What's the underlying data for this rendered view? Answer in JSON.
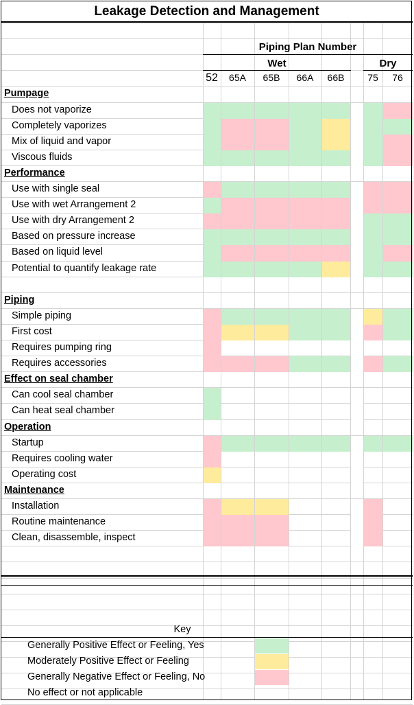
{
  "title": "Leakage Detection and Management",
  "header": {
    "group": "Piping Plan Number",
    "wet": "Wet",
    "dry": "Dry",
    "columns": [
      "52",
      "65A",
      "65B",
      "66A",
      "66B",
      "75",
      "76"
    ]
  },
  "colors": {
    "positive": "#c6efce",
    "moderate": "#ffeb9c",
    "negative": "#ffc7ce",
    "none": "#ffffff"
  },
  "sections": [
    {
      "name": "Pumpage",
      "rows": [
        {
          "label": "Does not vaporize",
          "ratings": [
            "G",
            "G",
            "G",
            "G",
            "G",
            "G",
            "R"
          ]
        },
        {
          "label": "Completely vaporizes",
          "ratings": [
            "G",
            "R",
            "R",
            "G",
            "Y",
            "G",
            "G"
          ]
        },
        {
          "label": "Mix of liquid and vapor",
          "ratings": [
            "G",
            "R",
            "R",
            "G",
            "Y",
            "G",
            "R"
          ]
        },
        {
          "label": "Viscous fluids",
          "ratings": [
            "G",
            "G",
            "G",
            "G",
            "G",
            "G",
            "R"
          ]
        }
      ]
    },
    {
      "name": "Performance",
      "rows": [
        {
          "label": "Use with single seal",
          "ratings": [
            "R",
            "G",
            "G",
            "G",
            "G",
            "R",
            "R"
          ]
        },
        {
          "label": "Use with wet Arrangement 2",
          "ratings": [
            "G",
            "R",
            "R",
            "R",
            "R",
            "R",
            "R"
          ]
        },
        {
          "label": "Use with dry Arrangement 2",
          "ratings": [
            "R",
            "R",
            "R",
            "R",
            "R",
            "G",
            "G"
          ]
        },
        {
          "label": "Based on pressure increase",
          "ratings": [
            "G",
            "G",
            "G",
            "G",
            "G",
            "G",
            "G"
          ]
        },
        {
          "label": "Based on liquid level",
          "ratings": [
            "G",
            "R",
            "R",
            "R",
            "R",
            "G",
            "R"
          ]
        },
        {
          "label": "Potential to quantify leakage rate",
          "ratings": [
            "G",
            "G",
            "G",
            "G",
            "Y",
            "G",
            "G"
          ]
        }
      ]
    },
    {
      "name": "Piping",
      "rows": [
        {
          "label": "Simple piping",
          "ratings": [
            "R",
            "G",
            "G",
            "G",
            "G",
            "Y",
            "G"
          ]
        },
        {
          "label": "First cost",
          "ratings": [
            "R",
            "Y",
            "Y",
            "G",
            "G",
            "R",
            "G"
          ]
        },
        {
          "label": "Requires pumping ring",
          "ratings": [
            "R",
            "N",
            "N",
            "N",
            "N",
            "N",
            "N"
          ]
        },
        {
          "label": "Requires accessories",
          "ratings": [
            "R",
            "R",
            "R",
            "G",
            "G",
            "R",
            "G"
          ]
        }
      ]
    },
    {
      "name": "Effect on seal chamber",
      "rows": [
        {
          "label": "Can cool seal chamber",
          "ratings": [
            "G",
            "N",
            "N",
            "N",
            "N",
            "N",
            "N"
          ]
        },
        {
          "label": "Can heat seal chamber",
          "ratings": [
            "G",
            "N",
            "N",
            "N",
            "N",
            "N",
            "N"
          ]
        }
      ]
    },
    {
      "name": "Operation",
      "rows": [
        {
          "label": "Startup",
          "ratings": [
            "R",
            "G",
            "G",
            "G",
            "G",
            "G",
            "G"
          ]
        },
        {
          "label": "Requires cooling water",
          "ratings": [
            "R",
            "N",
            "N",
            "N",
            "N",
            "N",
            "N"
          ]
        },
        {
          "label": "Operating cost",
          "ratings": [
            "Y",
            "N",
            "N",
            "N",
            "N",
            "N",
            "N"
          ]
        }
      ]
    },
    {
      "name": "Maintenance",
      "rows": [
        {
          "label": "Installation",
          "ratings": [
            "R",
            "Y",
            "Y",
            "N",
            "N",
            "R",
            "N"
          ]
        },
        {
          "label": "Routine maintenance",
          "ratings": [
            "R",
            "R",
            "R",
            "N",
            "N",
            "R",
            "N"
          ]
        },
        {
          "label": "Clean, disassemble, inspect",
          "ratings": [
            "R",
            "R",
            "R",
            "N",
            "N",
            "R",
            "N"
          ]
        }
      ]
    }
  ],
  "key": {
    "title": "Key",
    "items": [
      {
        "label": "Generally Positive Effect or Feeling, Yes",
        "rating": "G"
      },
      {
        "label": "Moderately Positive Effect or Feeling",
        "rating": "Y"
      },
      {
        "label": "Generally Negative Effect or Feeling, No",
        "rating": "R"
      },
      {
        "label": "No effect or not applicable",
        "rating": "N"
      }
    ]
  }
}
